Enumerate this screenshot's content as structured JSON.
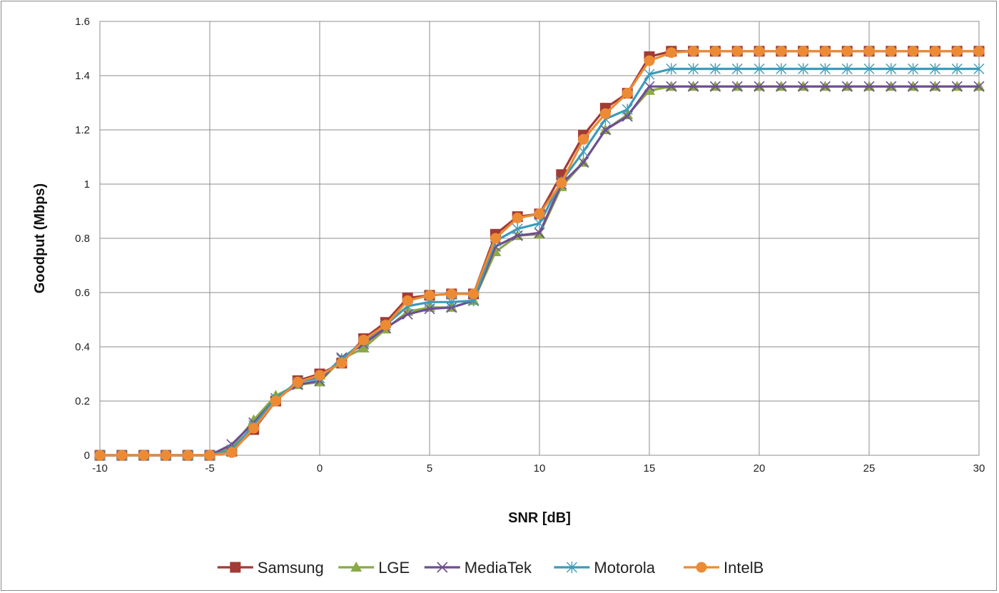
{
  "chart_data": {
    "type": "line",
    "title": "",
    "xlabel": "SNR [dB]",
    "ylabel": "Goodput (Mbps)",
    "xlim": [
      -10,
      30
    ],
    "ylim": [
      0,
      1.6
    ],
    "xticks": [
      -10,
      -5,
      0,
      5,
      10,
      15,
      20,
      25,
      30
    ],
    "xtick_labels": [
      "-10",
      "-5",
      "0",
      "5",
      "10",
      "15",
      "20",
      "25",
      "30"
    ],
    "yticks": [
      0,
      0.2,
      0.4,
      0.6,
      0.8,
      1,
      1.2,
      1.4,
      1.6
    ],
    "ytick_labels": [
      "0",
      "0.2",
      "0.4",
      "0.6",
      "0.8",
      "1",
      "1.2",
      "1.4",
      "1.6"
    ],
    "grid": true,
    "legend_position": "bottom",
    "x": [
      -10,
      -9,
      -8,
      -7,
      -6,
      -5,
      -4,
      -3,
      -2,
      -1,
      0,
      1,
      2,
      3,
      4,
      5,
      6,
      7,
      8,
      9,
      10,
      11,
      12,
      13,
      14,
      15,
      16,
      17,
      18,
      19,
      20,
      21,
      22,
      23,
      24,
      25,
      26,
      27,
      28,
      29,
      30
    ],
    "series": [
      {
        "name": "Samsung",
        "color": "#a33a36",
        "marker": "square",
        "values": [
          0,
          0,
          0,
          0,
          0,
          0,
          0.015,
          0.095,
          0.2,
          0.275,
          0.3,
          0.34,
          0.43,
          0.49,
          0.58,
          0.59,
          0.595,
          0.595,
          0.815,
          0.88,
          0.89,
          1.035,
          1.18,
          1.28,
          1.335,
          1.47,
          1.49,
          1.49,
          1.49,
          1.49,
          1.49,
          1.49,
          1.49,
          1.49,
          1.49,
          1.49,
          1.49,
          1.49,
          1.49,
          1.49,
          1.49
        ]
      },
      {
        "name": "LGE",
        "color": "#8aaa46",
        "marker": "triangle",
        "values": [
          0,
          0,
          0,
          0,
          0,
          0,
          0.03,
          0.13,
          0.22,
          0.26,
          0.27,
          0.355,
          0.395,
          0.465,
          0.53,
          0.545,
          0.545,
          0.57,
          0.75,
          0.81,
          0.815,
          0.99,
          1.08,
          1.2,
          1.255,
          1.345,
          1.36,
          1.36,
          1.36,
          1.36,
          1.36,
          1.36,
          1.36,
          1.36,
          1.36,
          1.36,
          1.36,
          1.36,
          1.36,
          1.36,
          1.36
        ]
      },
      {
        "name": "MediaTek",
        "color": "#6f4e93",
        "marker": "x",
        "values": [
          0,
          0,
          0,
          0,
          0,
          0,
          0.04,
          0.12,
          0.21,
          0.26,
          0.275,
          0.36,
          0.41,
          0.47,
          0.52,
          0.54,
          0.545,
          0.57,
          0.77,
          0.81,
          0.82,
          1.0,
          1.08,
          1.2,
          1.25,
          1.36,
          1.36,
          1.36,
          1.36,
          1.36,
          1.36,
          1.36,
          1.36,
          1.36,
          1.36,
          1.36,
          1.36,
          1.36,
          1.36,
          1.36,
          1.36
        ]
      },
      {
        "name": "Motorola",
        "color": "#3c9bb8",
        "marker": "asterisk",
        "values": [
          0,
          0,
          0,
          0,
          0,
          0,
          0.02,
          0.11,
          0.21,
          0.27,
          0.285,
          0.355,
          0.42,
          0.48,
          0.55,
          0.565,
          0.565,
          0.57,
          0.79,
          0.835,
          0.855,
          1.01,
          1.12,
          1.24,
          1.275,
          1.405,
          1.425,
          1.425,
          1.425,
          1.425,
          1.425,
          1.425,
          1.425,
          1.425,
          1.425,
          1.425,
          1.425,
          1.425,
          1.425,
          1.425,
          1.425
        ]
      },
      {
        "name": "IntelB",
        "color": "#ec8b33",
        "marker": "circle",
        "values": [
          0,
          0,
          0,
          0,
          0,
          0,
          0.01,
          0.1,
          0.2,
          0.27,
          0.295,
          0.34,
          0.425,
          0.48,
          0.57,
          0.59,
          0.595,
          0.595,
          0.8,
          0.875,
          0.89,
          1.005,
          1.165,
          1.26,
          1.335,
          1.455,
          1.485,
          1.49,
          1.49,
          1.49,
          1.49,
          1.49,
          1.49,
          1.49,
          1.49,
          1.49,
          1.49,
          1.49,
          1.49,
          1.49,
          1.49
        ]
      }
    ]
  }
}
